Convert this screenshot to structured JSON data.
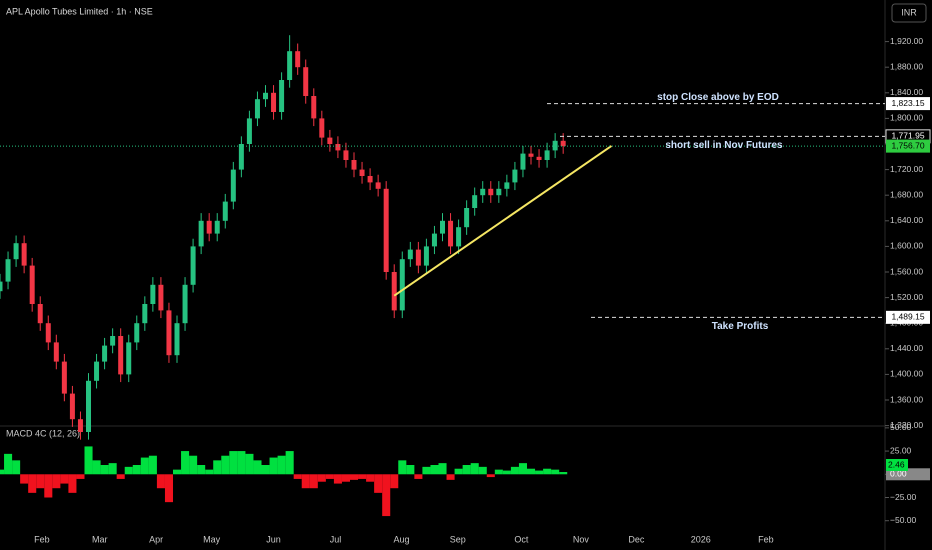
{
  "header": {
    "title": "APL Apollo Tubes Limited · 1h · NSE",
    "currency_button": "INR"
  },
  "chart_data": [
    {
      "type": "candlestick",
      "up_color": "#26c281",
      "down_color": "#f23645",
      "open": [
        1530,
        1545,
        1580,
        1605,
        1570,
        1510,
        1480,
        1450,
        1420,
        1370,
        1330,
        1310,
        1390,
        1420,
        1445,
        1460,
        1400,
        1450,
        1480,
        1510,
        1540,
        1500,
        1430,
        1480,
        1540,
        1600,
        1640,
        1620,
        1640,
        1670,
        1720,
        1760,
        1800,
        1830,
        1840,
        1810,
        1860,
        1905,
        1880,
        1835,
        1800,
        1770,
        1760,
        1750,
        1735,
        1720,
        1710,
        1700,
        1690,
        1560,
        1500,
        1580,
        1595,
        1570,
        1600,
        1620,
        1640,
        1600,
        1630,
        1660,
        1680,
        1690,
        1680,
        1690,
        1700,
        1720,
        1745,
        1740,
        1735,
        1750,
        1765
      ],
      "high": [
        1557,
        1592,
        1617,
        1617,
        1582,
        1522,
        1492,
        1462,
        1432,
        1382,
        1342,
        1402,
        1432,
        1457,
        1472,
        1472,
        1462,
        1492,
        1522,
        1552,
        1552,
        1512,
        1492,
        1552,
        1612,
        1652,
        1652,
        1652,
        1682,
        1732,
        1772,
        1812,
        1842,
        1852,
        1852,
        1872,
        1930,
        1917,
        1892,
        1847,
        1812,
        1782,
        1772,
        1762,
        1747,
        1732,
        1722,
        1712,
        1702,
        1572,
        1592,
        1607,
        1607,
        1612,
        1632,
        1652,
        1652,
        1642,
        1672,
        1692,
        1702,
        1702,
        1702,
        1712,
        1732,
        1757,
        1757,
        1752,
        1762,
        1777,
        1777
      ],
      "low": [
        1518,
        1533,
        1568,
        1558,
        1498,
        1468,
        1438,
        1408,
        1358,
        1318,
        1298,
        1298,
        1378,
        1408,
        1433,
        1388,
        1388,
        1438,
        1468,
        1498,
        1488,
        1418,
        1418,
        1468,
        1528,
        1588,
        1608,
        1608,
        1628,
        1658,
        1708,
        1748,
        1788,
        1818,
        1798,
        1798,
        1848,
        1868,
        1823,
        1788,
        1758,
        1748,
        1738,
        1723,
        1708,
        1698,
        1688,
        1678,
        1548,
        1488,
        1488,
        1568,
        1558,
        1558,
        1588,
        1608,
        1588,
        1588,
        1618,
        1648,
        1668,
        1668,
        1668,
        1678,
        1688,
        1708,
        1728,
        1723,
        1723,
        1738,
        1744.7
      ],
      "close": [
        1545,
        1580,
        1605,
        1570,
        1510,
        1480,
        1450,
        1420,
        1370,
        1330,
        1310,
        1390,
        1420,
        1445,
        1460,
        1400,
        1450,
        1480,
        1510,
        1540,
        1500,
        1430,
        1480,
        1540,
        1600,
        1640,
        1620,
        1640,
        1670,
        1720,
        1760,
        1800,
        1830,
        1840,
        1810,
        1860,
        1905,
        1880,
        1835,
        1800,
        1770,
        1760,
        1750,
        1735,
        1720,
        1710,
        1700,
        1690,
        1560,
        1500,
        1580,
        1595,
        1570,
        1600,
        1620,
        1640,
        1600,
        1630,
        1660,
        1680,
        1690,
        1680,
        1690,
        1700,
        1720,
        1745,
        1740,
        1735,
        1750,
        1765,
        1756.7
      ],
      "xlim": [
        0,
        110
      ],
      "xticks": [
        {
          "value": 5.2,
          "label": "Feb"
        },
        {
          "value": 12.4,
          "label": "Mar"
        },
        {
          "value": 19.4,
          "label": "Apr"
        },
        {
          "value": 26.3,
          "label": "May"
        },
        {
          "value": 34,
          "label": "Jun"
        },
        {
          "value": 41.7,
          "label": "Jul"
        },
        {
          "value": 49.9,
          "label": "Aug"
        },
        {
          "value": 56.9,
          "label": "Sep"
        },
        {
          "value": 64.8,
          "label": "Oct"
        },
        {
          "value": 72.2,
          "label": "Nov"
        },
        {
          "value": 79.1,
          "label": "Dec"
        },
        {
          "value": 87.1,
          "label": "2026"
        },
        {
          "value": 95.2,
          "label": "Feb"
        }
      ],
      "ylim": [
        1310,
        1985
      ],
      "yticks": [
        {
          "value": 1920,
          "label": "1,920.00"
        },
        {
          "value": 1880,
          "label": "1,880.00"
        },
        {
          "value": 1840,
          "label": "1,840.00"
        },
        {
          "value": 1800,
          "label": "1,800.00"
        },
        {
          "value": 1760,
          "label": "1,760.00"
        },
        {
          "value": 1720,
          "label": "1,720.00"
        },
        {
          "value": 1680,
          "label": "1,680.00"
        },
        {
          "value": 1640,
          "label": "1,640.00"
        },
        {
          "value": 1600,
          "label": "1,600.00"
        },
        {
          "value": 1560,
          "label": "1,560.00"
        },
        {
          "value": 1520,
          "label": "1,520.00"
        },
        {
          "value": 1480,
          "label": "1,480.00"
        },
        {
          "value": 1440,
          "label": "1,440.00"
        },
        {
          "value": 1400,
          "label": "1,400.00"
        },
        {
          "value": 1360,
          "label": "1,360.00"
        },
        {
          "value": 1320,
          "label": "1,320.00"
        }
      ],
      "levels": [
        {
          "value": 1823.15,
          "label": "1,823.15",
          "annotation": "stop Close above by EOD"
        },
        {
          "value": 1771.95,
          "label": "1,771.95"
        },
        {
          "value": 1756.7,
          "label": "1,756.70",
          "annotation": "short sell in Nov Futures"
        },
        {
          "value": 1489.15,
          "label": "1,489.15",
          "annotation": "Take Profits"
        }
      ],
      "trendline": {
        "x": [
          49,
          76
        ],
        "y": [
          1523,
          1757
        ],
        "color": "#f5e663"
      }
    },
    {
      "type": "histogram",
      "title": "MACD 4C (12, 26)",
      "up_color": "#00e040",
      "down_color": "#f0121e",
      "values": [
        5,
        22,
        15,
        -10,
        -20,
        -15,
        -25,
        -15,
        -10,
        -20,
        -5,
        30,
        15,
        10,
        12,
        -5,
        8,
        10,
        18,
        20,
        -15,
        -30,
        5,
        25,
        20,
        10,
        5,
        15,
        20,
        25,
        25,
        22,
        15,
        10,
        18,
        20,
        25,
        -5,
        -15,
        -15,
        -8,
        -5,
        -10,
        -8,
        -6,
        -5,
        -8,
        -20,
        -45,
        -15,
        15,
        10,
        -5,
        8,
        10,
        12,
        -6,
        6,
        10,
        12,
        8,
        -3,
        5,
        4,
        8,
        12,
        6,
        4,
        6,
        5,
        2.46
      ],
      "ylim": [
        -60,
        52
      ],
      "yticks": [
        {
          "value": 50,
          "label": "50.00"
        },
        {
          "value": 25,
          "label": "25.00"
        },
        {
          "value": 0,
          "label": "0.00"
        },
        {
          "value": -25,
          "label": "−25.00"
        },
        {
          "value": -50,
          "label": "−50.00"
        }
      ]
    }
  ]
}
